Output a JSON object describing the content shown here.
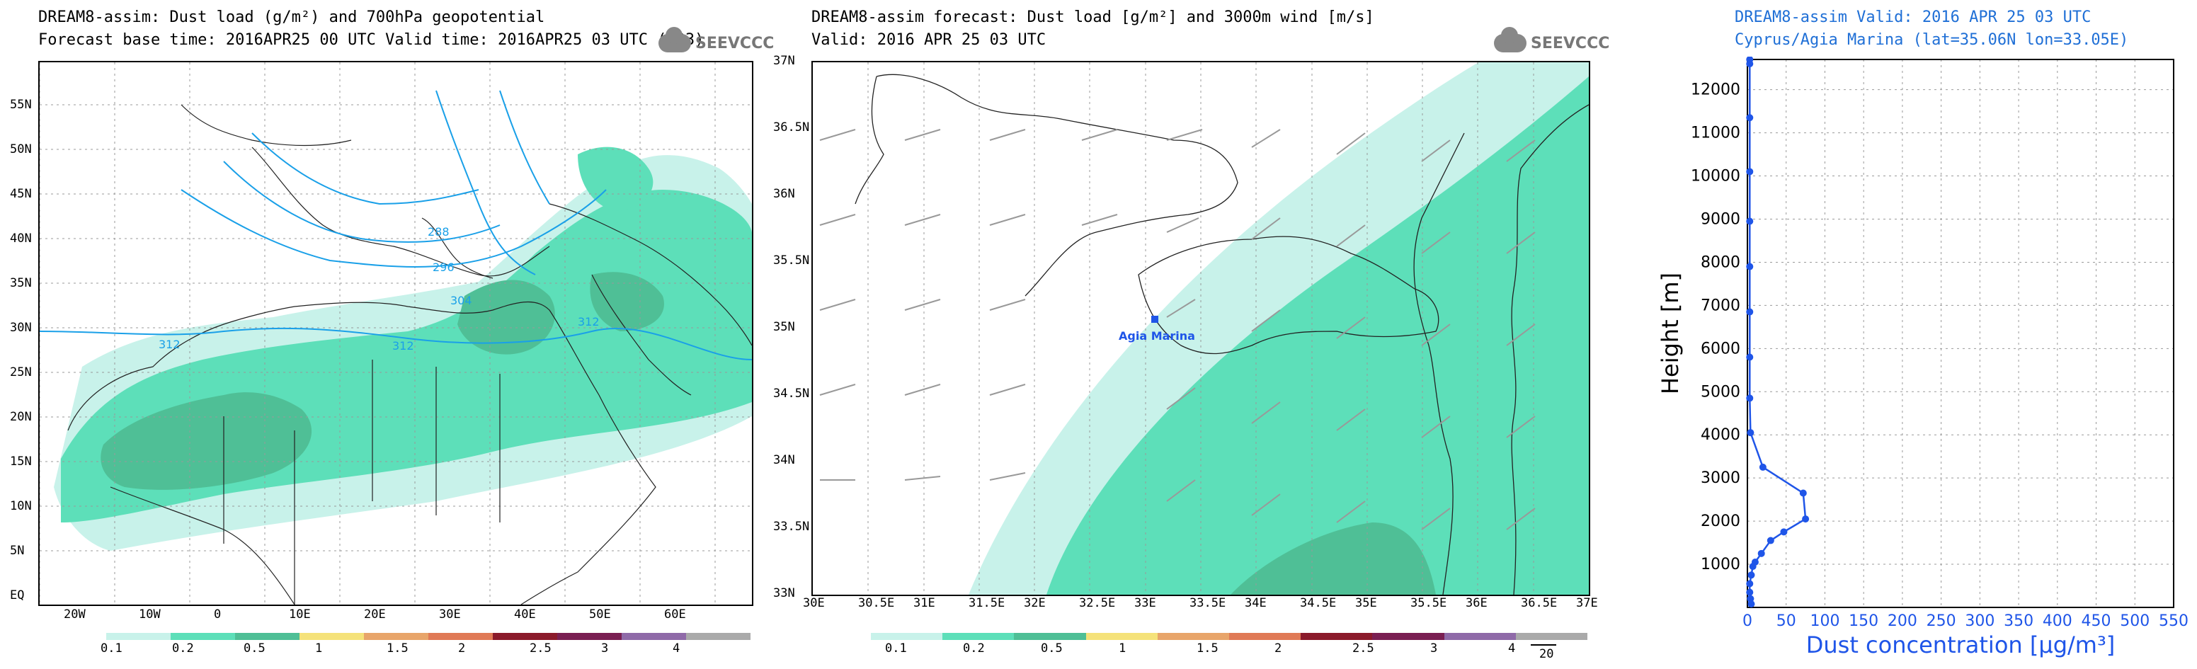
{
  "panel1": {
    "title_line1": "DREAM8-assim: Dust load (g/m²) and 700hPa geopotential",
    "title_line2": "Forecast base time: 2016APR25 00 UTC  Valid time: 2016APR25 03 UTC  (+03)",
    "logo": "SEEVCCC",
    "lat_labels": [
      "55N",
      "50N",
      "45N",
      "40N",
      "35N",
      "30N",
      "25N",
      "20N",
      "15N",
      "10N",
      "5N",
      "EQ"
    ],
    "lon_labels": [
      "20W",
      "10W",
      "0",
      "10E",
      "20E",
      "30E",
      "40E",
      "50E",
      "60E"
    ],
    "contour_labels": [
      "288",
      "296",
      "304",
      "312",
      "312",
      "312"
    ],
    "colorbar_labels": [
      "0.1",
      "0.2",
      "0.5",
      "1",
      "1.5",
      "2",
      "2.5",
      "3",
      "4"
    ]
  },
  "panel2": {
    "title_line1": "DREAM8-assim forecast: Dust load [g/m²] and 3000m wind [m/s]",
    "title_line2": "Valid: 2016 APR 25  03 UTC",
    "logo": "SEEVCCC",
    "station_label": "Agia Marina",
    "lat_labels": [
      "37N",
      "36.5N",
      "36N",
      "35.5N",
      "35N",
      "34.5N",
      "34N",
      "33.5N",
      "33N"
    ],
    "lon_labels": [
      "30E",
      "30.5E",
      "31E",
      "31.5E",
      "32E",
      "32.5E",
      "33E",
      "33.5E",
      "34E",
      "34.5E",
      "35E",
      "35.5E",
      "36E",
      "36.5E",
      "37E"
    ],
    "colorbar_labels": [
      "0.1",
      "0.2",
      "0.5",
      "1",
      "1.5",
      "2",
      "2.5",
      "3",
      "4"
    ],
    "wind_ref": "20"
  },
  "panel3": {
    "title_line1": "DREAM8-assim  Valid: 2016 APR 25  03 UTC",
    "title_line2": "Cyprus/Agia Marina (lat=35.06N lon=33.05E)"
  },
  "colors": {
    "c01": "#c8f2ea",
    "c02": "#5ddfb9",
    "c05": "#4fbf96",
    "c1": "#f5e27a",
    "c15": "#e8a56a",
    "c2": "#e07a56",
    "c25": "#8b1a2b",
    "c3": "#7a1f52",
    "c4": "#8f6aa8",
    "c5": "#aaaaaa",
    "profile": "#1f55e8"
  },
  "chart_data": {
    "type": "line",
    "title": "DREAM8-assim  Valid: 2016 APR 25  03 UTC",
    "subtitle": "Cyprus/Agia Marina (lat=35.06N lon=33.05E)",
    "xlabel": "Dust concentration [µg/m³]",
    "ylabel": "Height [m]",
    "xlim": [
      0,
      550
    ],
    "ylim": [
      0,
      12700
    ],
    "xticks": [
      0,
      50,
      100,
      150,
      200,
      250,
      300,
      350,
      400,
      450,
      500,
      550
    ],
    "yticks": [
      1000,
      2000,
      3000,
      4000,
      5000,
      6000,
      7000,
      8000,
      9000,
      10000,
      11000,
      12000
    ],
    "grid": true,
    "series": [
      {
        "x": [
          5,
          4,
          3,
          3,
          5,
          7,
          10,
          18,
          30,
          47,
          75,
          72,
          20,
          4,
          3,
          3,
          3,
          3,
          3,
          3,
          3,
          3,
          3
        ],
        "y": [
          80,
          200,
          350,
          550,
          750,
          950,
          1050,
          1250,
          1550,
          1750,
          2050,
          2650,
          3250,
          4050,
          4850,
          5800,
          6850,
          7900,
          8950,
          10100,
          11350,
          12600,
          12700
        ]
      }
    ]
  }
}
